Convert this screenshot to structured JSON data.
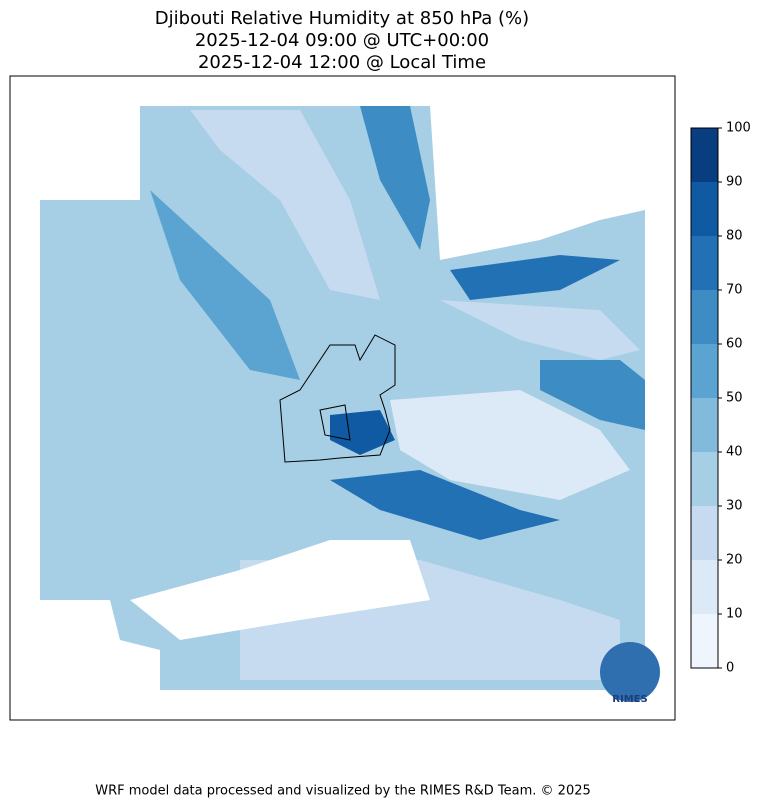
{
  "title": [
    "Djibouti Relative Humidity at 850 hPa (%)",
    "2025-12-04 09:00 @ UTC+00:00",
    "2025-12-04 12:00 @ Local Time"
  ],
  "colorbar": {
    "lim": [
      0,
      100
    ],
    "ticks": [
      0,
      10,
      20,
      30,
      40,
      50,
      60,
      70,
      80,
      90,
      100
    ],
    "colors": [
      "#eef5fc",
      "#dce9f6",
      "#c6dbef",
      "#a6cee4",
      "#82badb",
      "#5ba3d0",
      "#3d8dc4",
      "#2271b5",
      "#0f5aa3",
      "#083d7f"
    ]
  },
  "logo_text": "RIMES",
  "footer": "WRF model data processed and visualized by the RIMES R&D Team. © 2025"
}
